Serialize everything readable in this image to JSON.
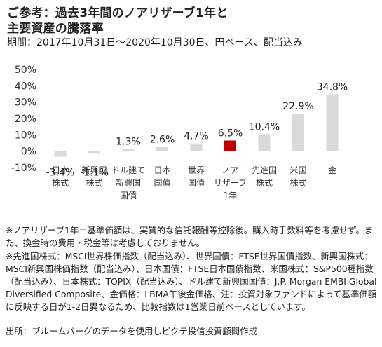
{
  "header": {
    "title_line1": "ご参考：過去3年間のノアリザーブ1年と",
    "title_line2": "主要資産の騰落率",
    "subtitle": "期間：2017年10月31日～2020年10月30日、円ベース、配当込み"
  },
  "chart_data": {
    "type": "bar",
    "categories": [
      [
        "日本",
        "株式"
      ],
      [
        "新興国",
        "株式"
      ],
      [
        "ドル建て",
        "新興国",
        "国債"
      ],
      [
        "日本",
        "国債"
      ],
      [
        "世界",
        "国債"
      ],
      [
        "ノア",
        "リザーブ",
        "1年"
      ],
      [
        "先進国",
        "株式"
      ],
      [
        "米国",
        "株式"
      ],
      [
        "金"
      ]
    ],
    "values": [
      -3.4,
      -1.1,
      1.3,
      2.6,
      4.7,
      6.5,
      10.4,
      22.9,
      34.8
    ],
    "value_labels": [
      "-3.4%",
      "-1.1%",
      "1.3%",
      "2.6%",
      "4.7%",
      "6.5%",
      "10.4%",
      "22.9%",
      "34.8%"
    ],
    "yticks": [
      "50%",
      "40%",
      "30%",
      "20%",
      "10%",
      "0%",
      "-10%"
    ],
    "ytick_values": [
      50,
      40,
      30,
      20,
      10,
      0,
      -10
    ],
    "ylim": [
      -10,
      50
    ],
    "highlight_index": 5,
    "colors": {
      "default": "#d9d9d9",
      "highlight": "#c00000"
    },
    "grid": false
  },
  "notes": {
    "note1": "※ノアリザーブ1年＝基準価額は、実質的な信託報酬等控除後。購入時手数料等を考慮せず。また、換金時の費用・税金等は考慮しておりません。",
    "note2": "※先進国株式：MSCI世界株価指数（配当込み）、世界国債：FTSE世界国債指数、新興国株式：MSCI新興国株価指数（配当込み）、日本国債：FTSE日本国債指数、米国株式：S&P500種指数（配当込み）、日本株式：TOPIX（配当込み）、ドル建て新興国国債：J.P. Morgan EMBI Global Diversified Composite、金価格：LBMA午後金価格、注：投資対象ファンドによって基準価額に反映する日が1-2日異なるため、比較指数は1営業日前ベースとしています。",
    "source": "出所：ブルームバーグのデータを使用しピクテ投信投資顧問作成"
  }
}
